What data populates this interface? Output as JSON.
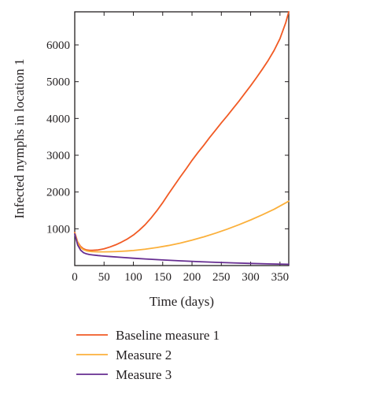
{
  "chart_data": {
    "type": "line",
    "xlabel": "Time (days)",
    "ylabel": "Infected nymphs in location 1",
    "xlim": [
      0,
      365
    ],
    "ylim": [
      0,
      6900
    ],
    "xticks": [
      0,
      50,
      100,
      150,
      200,
      250,
      300,
      350
    ],
    "yticks": [
      1000,
      2000,
      3000,
      4000,
      5000,
      6000
    ],
    "grid": false,
    "legend_position": "bottom",
    "series": [
      {
        "name": "Baseline measure 1",
        "color": "#f15a24",
        "x": [
          0,
          5,
          10,
          15,
          20,
          25,
          30,
          40,
          50,
          60,
          70,
          80,
          90,
          100,
          110,
          120,
          130,
          140,
          150,
          160,
          170,
          180,
          190,
          200,
          210,
          220,
          230,
          240,
          250,
          260,
          270,
          280,
          290,
          300,
          310,
          320,
          330,
          340,
          350,
          360,
          365
        ],
        "y": [
          900,
          640,
          520,
          455,
          425,
          415,
          415,
          425,
          455,
          505,
          565,
          640,
          725,
          830,
          960,
          1110,
          1290,
          1490,
          1710,
          1950,
          2180,
          2410,
          2630,
          2860,
          3070,
          3270,
          3480,
          3680,
          3880,
          4070,
          4270,
          4470,
          4680,
          4890,
          5110,
          5340,
          5580,
          5850,
          6170,
          6610,
          6900
        ]
      },
      {
        "name": "Measure 2",
        "color": "#fbb03b",
        "x": [
          0,
          5,
          10,
          15,
          20,
          25,
          30,
          40,
          50,
          60,
          70,
          80,
          90,
          100,
          120,
          140,
          160,
          180,
          200,
          220,
          240,
          260,
          280,
          300,
          320,
          340,
          365
        ],
        "y": [
          880,
          620,
          490,
          430,
          400,
          385,
          378,
          372,
          372,
          375,
          380,
          388,
          398,
          410,
          445,
          490,
          545,
          610,
          690,
          780,
          880,
          990,
          1110,
          1240,
          1380,
          1530,
          1750
        ]
      },
      {
        "name": "Measure 3",
        "color": "#662d91",
        "x": [
          0,
          5,
          10,
          15,
          20,
          25,
          30,
          40,
          50,
          60,
          80,
          100,
          120,
          150,
          180,
          210,
          240,
          270,
          300,
          330,
          365
        ],
        "y": [
          860,
          560,
          420,
          350,
          318,
          300,
          290,
          272,
          258,
          245,
          222,
          200,
          180,
          152,
          128,
          107,
          88,
          72,
          58,
          46,
          35
        ]
      }
    ]
  }
}
